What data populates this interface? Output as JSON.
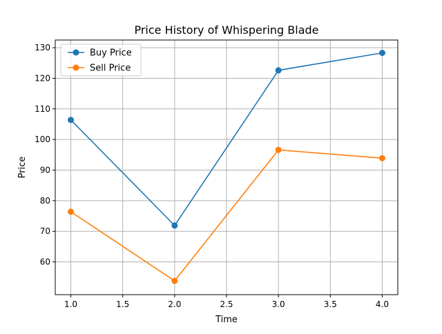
{
  "chart_data": {
    "type": "line",
    "title": "Price History of Whispering Blade",
    "xlabel": "Time",
    "ylabel": "Price",
    "x": [
      1.0,
      2.0,
      3.0,
      4.0
    ],
    "series": [
      {
        "name": "Buy Price",
        "color": "#1f77b4",
        "values": [
          106.4,
          71.9,
          122.6,
          128.3
        ]
      },
      {
        "name": "Sell Price",
        "color": "#ff7f0e",
        "values": [
          76.4,
          53.8,
          96.6,
          93.9
        ]
      }
    ],
    "xlim": [
      0.85,
      4.15
    ],
    "ylim": [
      49.3,
      132.5
    ],
    "xticks": [
      1.0,
      1.5,
      2.0,
      2.5,
      3.0,
      3.5,
      4.0
    ],
    "xtick_labels": [
      "1.0",
      "1.5",
      "2.0",
      "2.5",
      "3.0",
      "3.5",
      "4.0"
    ],
    "yticks": [
      60,
      70,
      80,
      90,
      100,
      110,
      120,
      130
    ],
    "ytick_labels": [
      "60",
      "70",
      "80",
      "90",
      "100",
      "110",
      "120",
      "130"
    ],
    "grid": true,
    "legend_position": "upper left",
    "markers": "circle"
  }
}
